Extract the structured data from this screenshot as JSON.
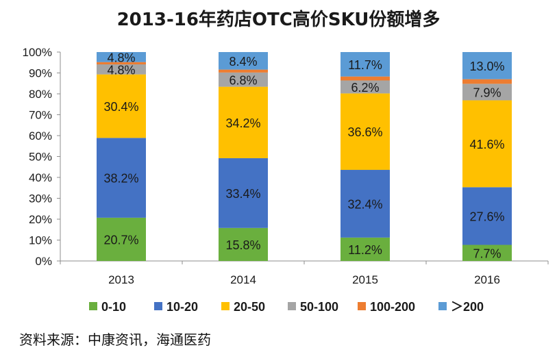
{
  "title": "2013-16年药店OTC高价SKU份额增多",
  "source": "资料来源：中康资讯，海通医药",
  "colors": {
    "0-10": "#6aaf3e",
    "10-20": "#4472c4",
    "20-50": "#ffc000",
    "50-100": "#a5a5a5",
    "100-200": "#ed7d31",
    ">200": "#5b9bd5",
    "axis": "#8c8c8c",
    "text": "#1a1a1a"
  },
  "chart_data": {
    "type": "bar",
    "stacked": true,
    "categories": [
      "2013",
      "2014",
      "2015",
      "2016"
    ],
    "ylim": [
      0,
      100
    ],
    "yticks": [
      "0%",
      "10%",
      "20%",
      "30%",
      "40%",
      "50%",
      "60%",
      "70%",
      "80%",
      "90%",
      "100%"
    ],
    "series": [
      {
        "name": "0-10",
        "values": [
          20.7,
          15.8,
          11.2,
          7.7
        ],
        "labels": [
          "20.7%",
          "15.8%",
          "11.2%",
          "7.7%"
        ]
      },
      {
        "name": "10-20",
        "values": [
          38.2,
          33.4,
          32.4,
          27.6
        ],
        "labels": [
          "38.2%",
          "33.4%",
          "32.4%",
          "27.6%"
        ]
      },
      {
        "name": "20-50",
        "values": [
          30.4,
          34.2,
          36.6,
          41.6
        ],
        "labels": [
          "30.4%",
          "34.2%",
          "36.6%",
          "41.6%"
        ]
      },
      {
        "name": "50-100",
        "values": [
          4.8,
          6.8,
          6.2,
          7.9
        ],
        "labels": [
          "4.8%",
          "6.8%",
          "6.2%",
          "7.9%"
        ]
      },
      {
        "name": "100-200",
        "values": [
          1.1,
          1.4,
          1.9,
          2.2
        ],
        "labels": [
          "",
          "",
          "",
          ""
        ]
      },
      {
        "name": ">200",
        "values": [
          4.8,
          8.4,
          11.7,
          13.0
        ],
        "labels": [
          "4.8%",
          "8.4%",
          "11.7%",
          "13.0%"
        ]
      }
    ],
    "legend": [
      "0-10",
      "10-20",
      "20-50",
      "50-100",
      "100-200",
      "＞200"
    ],
    "legend_position": "bottom"
  }
}
